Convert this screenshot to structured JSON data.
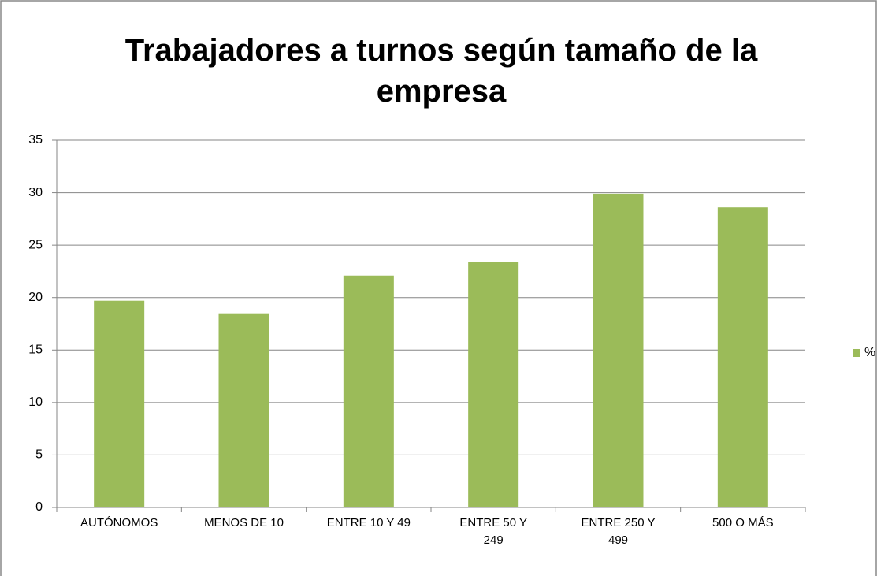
{
  "chart_data": {
    "type": "bar",
    "title": "Trabajadores a turnos según tamaño de la empresa",
    "categories": [
      "AUTÓNOMOS",
      "MENOS DE 10",
      "ENTRE 10 Y 49",
      "ENTRE 50 Y 249",
      "ENTRE 250 Y 499",
      "500 O MÁS"
    ],
    "series": [
      {
        "name": "%",
        "color": "#9bbb59",
        "values": [
          19.7,
          18.5,
          22.1,
          23.4,
          29.9,
          28.6
        ]
      }
    ],
    "ylim": [
      0,
      35
    ],
    "yticks": [
      0,
      5,
      10,
      15,
      20,
      25,
      30,
      35
    ],
    "grid": true,
    "legend": "right"
  }
}
